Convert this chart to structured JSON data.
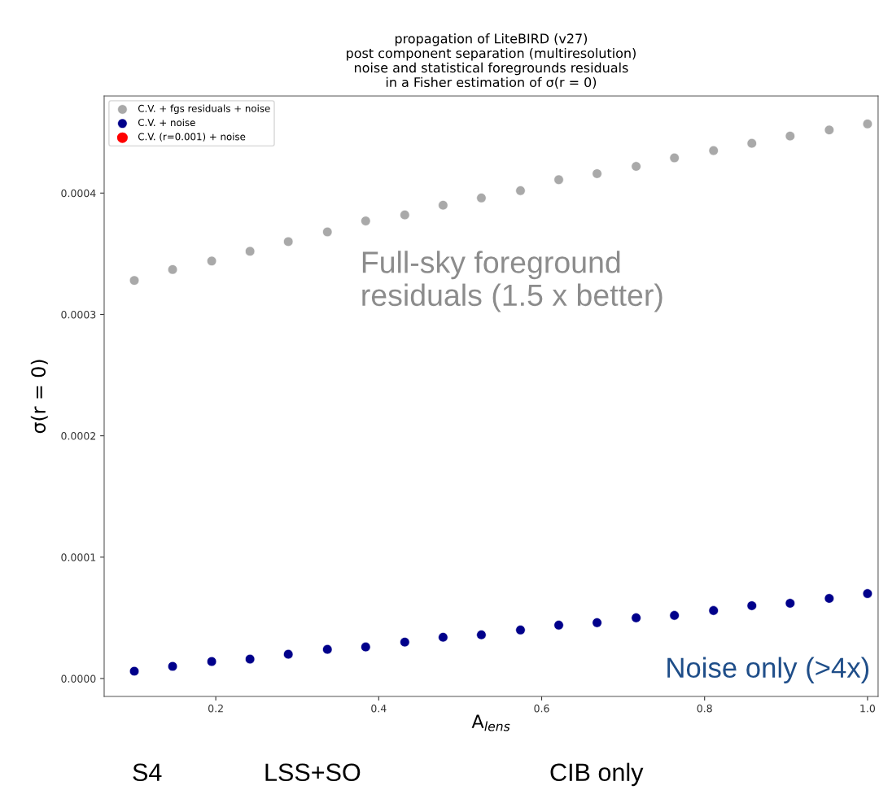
{
  "chart_data": {
    "type": "scatter",
    "title": "propagation of LiteBIRD (v27)\npost component separation (multiresolution)\nnoise and statistical foregrounds residuals\nin a Fisher estimation of σ(r = 0)",
    "xlabel": "A$_{lens}$",
    "ylabel": "σ(r = 0)",
    "x": [
      0.1,
      0.147,
      0.195,
      0.242,
      0.289,
      0.337,
      0.384,
      0.432,
      0.479,
      0.526,
      0.574,
      0.621,
      0.668,
      0.716,
      0.763,
      0.811,
      0.858,
      0.905,
      0.953,
      1.0
    ],
    "series": [
      {
        "name": "C.V. + fgs residuals + noise",
        "color": "#a9a9a9",
        "values": [
          0.000328,
          0.000337,
          0.000344,
          0.000352,
          0.00036,
          0.000368,
          0.000377,
          0.000382,
          0.00039,
          0.000396,
          0.000402,
          0.000411,
          0.000416,
          0.000422,
          0.000429,
          0.000435,
          0.000441,
          0.000447,
          0.000452,
          0.000457
        ]
      },
      {
        "name": "C.V. + noise",
        "color": "#00008b",
        "values": [
          6e-06,
          1e-05,
          1.4e-05,
          1.6e-05,
          2e-05,
          2.4e-05,
          2.6e-05,
          3e-05,
          3.4e-05,
          3.6e-05,
          4e-05,
          4.4e-05,
          4.6e-05,
          5e-05,
          5.2e-05,
          5.6e-05,
          6e-05,
          6.2e-05,
          6.6e-05,
          7e-05
        ]
      },
      {
        "name": "C.V. (r=0.001) + noise",
        "color": "#ff0000",
        "values": [
          null,
          null,
          null,
          null,
          null,
          null,
          null,
          null,
          null,
          null,
          null,
          null,
          null,
          null,
          null,
          null,
          null,
          null,
          null,
          null
        ]
      }
    ],
    "xlim": [
      0.063,
      1.013
    ],
    "xticks": [
      0.2,
      0.4,
      0.6,
      0.8,
      {
        "value": 1,
        "label": "1.0"
      }
    ],
    "ylim": [
      -1.48e-05,
      0.00048
    ],
    "yticks": [
      {
        "value": 0,
        "label": "0.0000"
      },
      {
        "value": 0.0001,
        "label": "0.0001"
      },
      {
        "value": 0.0002,
        "label": "0.0002"
      },
      {
        "value": 0.0003,
        "label": "0.0003"
      },
      {
        "value": 0.0004,
        "label": "0.0004"
      }
    ],
    "annotations": [
      "Full-sky foreground\nresiduals (1.5 x better)",
      "Noise only (>4x)",
      "S4",
      "LSS+SO",
      "CIB only"
    ],
    "legend": "top left",
    "marker": "circle",
    "grid": false
  }
}
